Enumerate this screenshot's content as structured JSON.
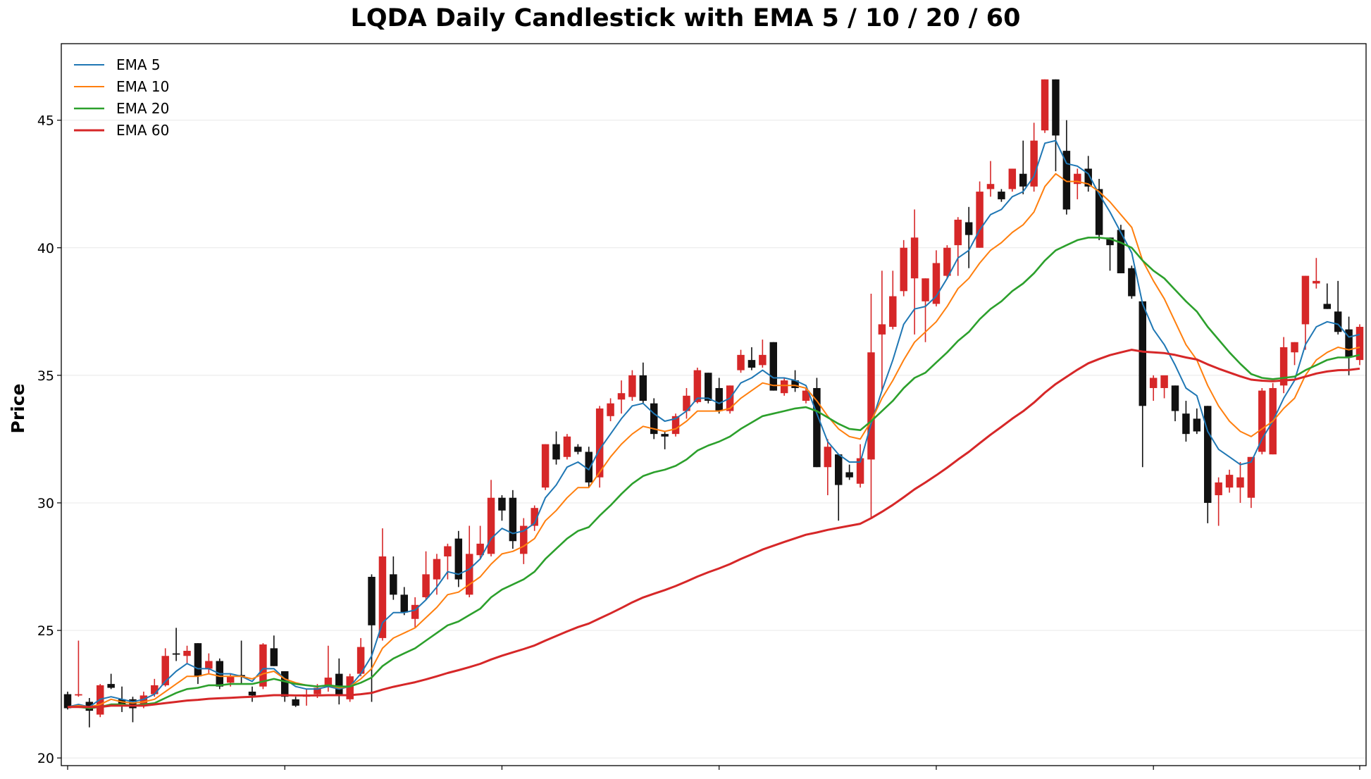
{
  "colors": {
    "up": "#d62728",
    "down": "#111111",
    "ema5": "#1f77b4",
    "ema10": "#ff7f0e",
    "ema20": "#2ca02c",
    "ema60": "#d62728",
    "grid": "#e8e8e8"
  },
  "chart_data": {
    "type": "candlestick",
    "title": "LQDA Daily Candlestick with EMA 5 / 10 / 20 / 60",
    "xlabel": "",
    "ylabel": "Price",
    "ylim": [
      19.7,
      48.0
    ],
    "yticks": [
      20,
      25,
      30,
      35,
      40,
      45
    ],
    "grid": "horizontal",
    "legend_position": "top-left",
    "ohlc": [
      [
        22.5,
        22.6,
        21.9,
        21.95
      ],
      [
        22.45,
        24.6,
        22.4,
        22.5
      ],
      [
        22.2,
        22.35,
        21.2,
        21.85
      ],
      [
        21.7,
        22.9,
        21.6,
        22.85
      ],
      [
        22.9,
        23.3,
        22.7,
        22.75
      ],
      [
        22.3,
        22.8,
        21.8,
        22.1
      ],
      [
        22.3,
        22.4,
        21.4,
        21.95
      ],
      [
        22.05,
        22.6,
        21.95,
        22.45
      ],
      [
        22.5,
        23.1,
        22.4,
        22.85
      ],
      [
        22.85,
        24.3,
        22.8,
        24.0
      ],
      [
        24.1,
        25.1,
        23.8,
        24.05
      ],
      [
        24.0,
        24.4,
        23.7,
        24.2
      ],
      [
        24.5,
        24.5,
        22.9,
        23.2
      ],
      [
        23.5,
        24.1,
        23.3,
        23.8
      ],
      [
        23.8,
        23.9,
        22.7,
        22.8
      ],
      [
        22.95,
        23.3,
        22.8,
        23.2
      ],
      [
        23.25,
        24.6,
        22.9,
        23.2
      ],
      [
        22.6,
        22.8,
        22.2,
        22.45
      ],
      [
        22.8,
        24.5,
        22.7,
        24.45
      ],
      [
        24.3,
        24.8,
        23.6,
        23.6
      ],
      [
        23.4,
        23.4,
        22.2,
        22.4
      ],
      [
        22.3,
        22.4,
        22.0,
        22.05
      ],
      [
        22.4,
        22.7,
        22.05,
        22.45
      ],
      [
        22.5,
        22.9,
        22.35,
        22.75
      ],
      [
        22.8,
        24.4,
        22.6,
        23.15
      ],
      [
        23.3,
        23.9,
        22.1,
        22.5
      ],
      [
        22.3,
        23.3,
        22.2,
        23.2
      ],
      [
        23.3,
        24.7,
        23.2,
        24.35
      ],
      [
        27.1,
        27.2,
        22.2,
        25.2
      ],
      [
        24.7,
        29.0,
        24.6,
        27.9
      ],
      [
        27.2,
        27.9,
        26.2,
        26.4
      ],
      [
        26.4,
        26.7,
        25.6,
        25.7
      ],
      [
        25.45,
        26.3,
        25.1,
        26.0
      ],
      [
        26.3,
        28.1,
        26.2,
        27.2
      ],
      [
        27.0,
        28.0,
        26.4,
        27.8
      ],
      [
        27.9,
        28.4,
        27.0,
        28.3
      ],
      [
        28.6,
        28.9,
        26.7,
        27.0
      ],
      [
        26.4,
        29.1,
        26.3,
        28.0
      ],
      [
        27.95,
        29.1,
        27.8,
        28.4
      ],
      [
        28.0,
        30.9,
        27.9,
        30.2
      ],
      [
        30.2,
        30.3,
        29.3,
        29.7
      ],
      [
        30.2,
        30.5,
        28.2,
        28.5
      ],
      [
        28.0,
        29.4,
        27.6,
        29.1
      ],
      [
        29.1,
        29.9,
        28.9,
        29.8
      ],
      [
        30.6,
        32.3,
        30.5,
        32.3
      ],
      [
        32.3,
        32.8,
        31.5,
        31.7
      ],
      [
        31.8,
        32.7,
        31.7,
        32.6
      ],
      [
        32.2,
        32.3,
        31.9,
        32.0
      ],
      [
        32.0,
        32.2,
        30.6,
        30.8
      ],
      [
        31.0,
        33.8,
        30.6,
        33.7
      ],
      [
        33.4,
        34.1,
        33.2,
        33.9
      ],
      [
        34.05,
        34.8,
        33.5,
        34.3
      ],
      [
        34.15,
        35.2,
        34.0,
        35.0
      ],
      [
        35.0,
        35.5,
        33.9,
        34.0
      ],
      [
        33.9,
        34.1,
        32.5,
        32.7
      ],
      [
        32.7,
        32.8,
        32.1,
        32.6
      ],
      [
        32.7,
        33.5,
        32.6,
        33.4
      ],
      [
        33.6,
        34.5,
        33.3,
        34.2
      ],
      [
        33.95,
        35.3,
        33.9,
        35.2
      ],
      [
        35.1,
        35.1,
        33.9,
        34.0
      ],
      [
        34.5,
        34.9,
        33.5,
        33.6
      ],
      [
        33.6,
        34.6,
        33.5,
        34.6
      ],
      [
        35.2,
        36.0,
        35.1,
        35.8
      ],
      [
        35.6,
        36.1,
        35.2,
        35.3
      ],
      [
        35.4,
        36.4,
        35.3,
        35.8
      ],
      [
        36.3,
        36.3,
        34.4,
        34.4
      ],
      [
        34.3,
        34.9,
        34.2,
        34.8
      ],
      [
        34.8,
        35.2,
        34.35,
        34.5
      ],
      [
        34.0,
        34.5,
        33.9,
        34.4
      ],
      [
        34.5,
        34.9,
        31.4,
        31.4
      ],
      [
        31.4,
        32.5,
        30.3,
        32.2
      ],
      [
        31.9,
        31.9,
        29.3,
        30.7
      ],
      [
        31.2,
        31.5,
        30.9,
        31.0
      ],
      [
        30.75,
        32.3,
        30.6,
        31.75
      ],
      [
        31.7,
        38.2,
        29.4,
        35.9
      ],
      [
        36.6,
        39.1,
        34.4,
        37.0
      ],
      [
        36.9,
        39.1,
        36.8,
        38.1
      ],
      [
        38.3,
        40.3,
        38.1,
        40.0
      ],
      [
        38.8,
        41.5,
        36.6,
        40.4
      ],
      [
        37.9,
        38.8,
        36.3,
        38.8
      ],
      [
        37.8,
        39.9,
        37.7,
        39.4
      ],
      [
        38.9,
        40.1,
        38.8,
        40.0
      ],
      [
        40.1,
        41.2,
        38.9,
        41.1
      ],
      [
        41.0,
        41.6,
        39.2,
        40.5
      ],
      [
        40.0,
        42.6,
        40.0,
        42.2
      ],
      [
        42.3,
        43.4,
        42.0,
        42.5
      ],
      [
        42.2,
        42.3,
        41.8,
        41.9
      ],
      [
        42.3,
        43.1,
        42.2,
        43.1
      ],
      [
        42.9,
        44.2,
        42.1,
        42.4
      ],
      [
        42.4,
        44.9,
        42.2,
        44.2
      ],
      [
        44.6,
        46.6,
        44.5,
        46.6
      ],
      [
        46.6,
        46.6,
        43.0,
        44.4
      ],
      [
        43.8,
        45.0,
        41.3,
        41.5
      ],
      [
        42.5,
        43.1,
        41.9,
        42.9
      ],
      [
        43.1,
        43.6,
        42.2,
        42.4
      ],
      [
        42.3,
        42.7,
        40.3,
        40.5
      ],
      [
        40.4,
        40.4,
        39.1,
        40.1
      ],
      [
        40.7,
        40.9,
        39.0,
        39.0
      ],
      [
        39.2,
        39.3,
        38.0,
        38.1
      ],
      [
        37.9,
        37.9,
        31.4,
        33.8
      ],
      [
        34.5,
        35.0,
        34.0,
        34.9
      ],
      [
        34.5,
        34.9,
        34.1,
        35.0
      ],
      [
        34.6,
        34.6,
        33.2,
        33.6
      ],
      [
        33.5,
        34.0,
        32.4,
        32.7
      ],
      [
        33.3,
        33.7,
        32.7,
        32.8
      ],
      [
        33.8,
        33.8,
        29.2,
        30.0
      ],
      [
        30.3,
        31.0,
        29.1,
        30.8
      ],
      [
        30.6,
        31.3,
        30.4,
        31.1
      ],
      [
        30.6,
        31.6,
        30.0,
        31.0
      ],
      [
        30.2,
        31.7,
        29.8,
        31.8
      ],
      [
        32.0,
        34.5,
        31.9,
        34.4
      ],
      [
        31.9,
        34.7,
        31.9,
        34.5
      ],
      [
        34.6,
        36.5,
        34.3,
        36.1
      ],
      [
        35.9,
        36.3,
        35.4,
        36.3
      ],
      [
        37.0,
        38.9,
        36.0,
        38.9
      ],
      [
        38.6,
        39.6,
        38.4,
        38.7
      ],
      [
        37.8,
        38.6,
        37.6,
        37.6
      ],
      [
        37.5,
        38.7,
        36.6,
        36.7
      ],
      [
        36.8,
        37.3,
        35.0,
        35.7
      ],
      [
        35.6,
        37.0,
        35.4,
        36.9
      ]
    ],
    "series": [
      {
        "name": "EMA 5",
        "values": [
          22.0,
          22.1,
          22.0,
          22.3,
          22.4,
          22.3,
          22.2,
          22.3,
          22.5,
          23.0,
          23.4,
          23.7,
          23.5,
          23.5,
          23.3,
          23.3,
          23.2,
          23.0,
          23.5,
          23.5,
          23.1,
          22.8,
          22.7,
          22.7,
          22.8,
          22.7,
          22.8,
          23.3,
          24.0,
          25.3,
          25.7,
          25.7,
          25.8,
          26.2,
          26.7,
          27.3,
          27.2,
          27.4,
          27.8,
          28.6,
          29.0,
          28.8,
          28.9,
          29.2,
          30.2,
          30.7,
          31.4,
          31.6,
          31.3,
          32.1,
          32.7,
          33.3,
          33.8,
          33.9,
          33.5,
          33.2,
          33.3,
          33.6,
          34.1,
          34.1,
          33.9,
          34.1,
          34.7,
          34.9,
          35.2,
          34.9,
          34.9,
          34.8,
          34.6,
          33.5,
          32.4,
          31.9,
          31.6,
          31.6,
          33.1,
          34.4,
          35.6,
          37.0,
          37.6,
          37.7,
          38.1,
          38.8,
          39.6,
          39.9,
          40.7,
          41.3,
          41.5,
          42.0,
          42.2,
          42.8,
          44.1,
          44.2,
          43.3,
          43.2,
          42.9,
          42.1,
          41.4,
          40.6,
          39.8,
          37.8,
          36.8,
          36.2,
          35.4,
          34.5,
          34.2,
          32.8,
          32.1,
          31.8,
          31.5,
          31.6,
          32.5,
          33.2,
          34.1,
          34.8,
          36.2,
          36.9,
          37.1,
          37.0,
          36.5,
          36.6
        ]
      },
      {
        "name": "EMA 10",
        "values": [
          22.0,
          22.05,
          22.0,
          22.1,
          22.3,
          22.2,
          22.15,
          22.2,
          22.3,
          22.6,
          22.9,
          23.2,
          23.2,
          23.3,
          23.2,
          23.2,
          23.2,
          23.1,
          23.3,
          23.4,
          23.1,
          22.95,
          22.85,
          22.8,
          22.85,
          22.75,
          22.8,
          23.1,
          23.5,
          24.3,
          24.7,
          24.9,
          25.1,
          25.5,
          25.9,
          26.4,
          26.5,
          26.8,
          27.1,
          27.6,
          28.0,
          28.1,
          28.3,
          28.6,
          29.3,
          29.7,
          30.2,
          30.6,
          30.6,
          31.2,
          31.8,
          32.3,
          32.7,
          33.0,
          32.9,
          32.8,
          32.9,
          33.2,
          33.6,
          33.6,
          33.6,
          33.7,
          34.1,
          34.4,
          34.7,
          34.6,
          34.6,
          34.6,
          34.5,
          34.0,
          33.4,
          32.9,
          32.6,
          32.5,
          33.2,
          34.1,
          34.8,
          35.6,
          36.3,
          36.7,
          37.1,
          37.7,
          38.4,
          38.8,
          39.4,
          39.9,
          40.2,
          40.6,
          40.9,
          41.4,
          42.4,
          42.9,
          42.6,
          42.6,
          42.5,
          42.2,
          41.8,
          41.3,
          40.8,
          39.5,
          38.7,
          38.0,
          37.1,
          36.2,
          35.6,
          34.6,
          33.8,
          33.2,
          32.8,
          32.6,
          32.9,
          33.2,
          33.7,
          34.1,
          35.0,
          35.6,
          35.9,
          36.1,
          36.0,
          36.1
        ]
      },
      {
        "name": "EMA 20",
        "values": [
          22.0,
          22.0,
          21.95,
          22.0,
          22.1,
          22.1,
          22.05,
          22.1,
          22.15,
          22.35,
          22.55,
          22.7,
          22.75,
          22.85,
          22.85,
          22.9,
          22.9,
          22.9,
          23.0,
          23.1,
          23.0,
          22.9,
          22.85,
          22.8,
          22.85,
          22.8,
          22.8,
          22.95,
          23.15,
          23.6,
          23.9,
          24.1,
          24.3,
          24.6,
          24.9,
          25.2,
          25.35,
          25.6,
          25.85,
          26.3,
          26.6,
          26.8,
          27.0,
          27.3,
          27.8,
          28.2,
          28.6,
          28.9,
          29.05,
          29.5,
          29.9,
          30.35,
          30.75,
          31.05,
          31.2,
          31.3,
          31.45,
          31.7,
          32.05,
          32.25,
          32.4,
          32.6,
          32.9,
          33.15,
          33.4,
          33.5,
          33.6,
          33.7,
          33.75,
          33.6,
          33.35,
          33.1,
          32.9,
          32.85,
          33.2,
          33.6,
          34.0,
          34.5,
          34.9,
          35.1,
          35.5,
          35.9,
          36.35,
          36.7,
          37.2,
          37.6,
          37.9,
          38.3,
          38.6,
          39.0,
          39.5,
          39.9,
          40.1,
          40.3,
          40.4,
          40.4,
          40.35,
          40.2,
          40.0,
          39.5,
          39.1,
          38.8,
          38.35,
          37.9,
          37.5,
          36.9,
          36.4,
          35.9,
          35.45,
          35.05,
          34.9,
          34.85,
          34.9,
          34.95,
          35.2,
          35.4,
          35.6,
          35.7,
          35.7,
          35.8
        ]
      },
      {
        "name": "EMA 60",
        "values": [
          22.0,
          22.0,
          22.0,
          22.0,
          22.05,
          22.05,
          22.05,
          22.05,
          22.1,
          22.15,
          22.2,
          22.25,
          22.28,
          22.32,
          22.34,
          22.36,
          22.38,
          22.4,
          22.43,
          22.46,
          22.46,
          22.45,
          22.45,
          22.45,
          22.46,
          22.46,
          22.46,
          22.5,
          22.55,
          22.68,
          22.79,
          22.88,
          22.97,
          23.08,
          23.2,
          23.33,
          23.44,
          23.56,
          23.69,
          23.86,
          24.01,
          24.14,
          24.27,
          24.41,
          24.6,
          24.78,
          24.96,
          25.13,
          25.27,
          25.47,
          25.67,
          25.88,
          26.1,
          26.29,
          26.44,
          26.58,
          26.74,
          26.92,
          27.11,
          27.28,
          27.43,
          27.6,
          27.8,
          27.98,
          28.17,
          28.32,
          28.47,
          28.61,
          28.75,
          28.84,
          28.94,
          29.02,
          29.1,
          29.18,
          29.4,
          29.65,
          29.92,
          30.22,
          30.53,
          30.8,
          31.08,
          31.38,
          31.7,
          32.0,
          32.34,
          32.67,
          32.98,
          33.3,
          33.59,
          33.93,
          34.32,
          34.66,
          34.94,
          35.22,
          35.47,
          35.64,
          35.79,
          35.9,
          36.0,
          35.93,
          35.9,
          35.87,
          35.8,
          35.7,
          35.62,
          35.43,
          35.26,
          35.11,
          34.96,
          34.83,
          34.79,
          34.77,
          34.8,
          34.83,
          34.95,
          35.07,
          35.15,
          35.2,
          35.21,
          35.26
        ]
      }
    ]
  }
}
